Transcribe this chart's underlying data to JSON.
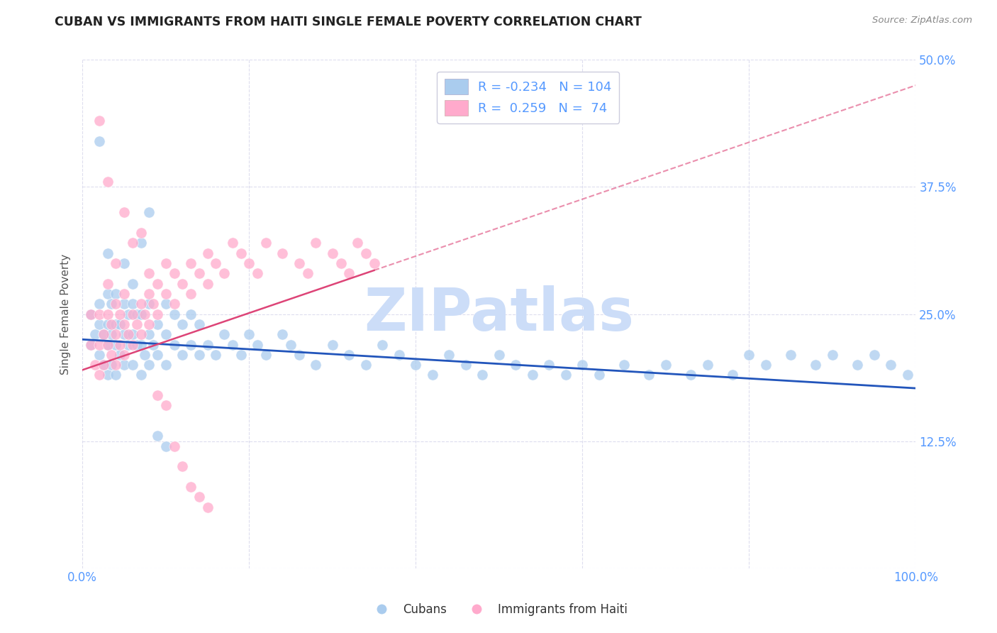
{
  "title": "CUBAN VS IMMIGRANTS FROM HAITI SINGLE FEMALE POVERTY CORRELATION CHART",
  "source": "Source: ZipAtlas.com",
  "ylabel": "Single Female Poverty",
  "xlim": [
    0,
    1.0
  ],
  "ylim": [
    0,
    0.5
  ],
  "yticks": [
    0.0,
    0.125,
    0.25,
    0.375,
    0.5
  ],
  "ytick_labels_right": [
    "",
    "12.5%",
    "25.0%",
    "37.5%",
    "50.0%"
  ],
  "xticks": [
    0.0,
    0.2,
    0.4,
    0.6,
    0.8,
    1.0
  ],
  "xtick_labels": [
    "0.0%",
    "",
    "",
    "",
    "",
    "100.0%"
  ],
  "blue_color": "#AACCEE",
  "pink_color": "#FFAACC",
  "blue_line_color": "#2255BB",
  "pink_line_color": "#DD4477",
  "axis_tick_color": "#5599FF",
  "grid_color": "#DDDDEE",
  "background_color": "#FFFFFF",
  "watermark_text": "ZIPatlas",
  "watermark_color": "#CCDDF8",
  "blue_slope": -0.048,
  "blue_intercept": 0.225,
  "pink_slope": 0.28,
  "pink_intercept": 0.195,
  "cubans_x": [
    0.01,
    0.01,
    0.015,
    0.02,
    0.02,
    0.02,
    0.025,
    0.025,
    0.03,
    0.03,
    0.03,
    0.03,
    0.035,
    0.035,
    0.035,
    0.04,
    0.04,
    0.04,
    0.04,
    0.045,
    0.045,
    0.05,
    0.05,
    0.05,
    0.055,
    0.055,
    0.06,
    0.06,
    0.06,
    0.065,
    0.065,
    0.07,
    0.07,
    0.07,
    0.075,
    0.08,
    0.08,
    0.08,
    0.085,
    0.09,
    0.09,
    0.1,
    0.1,
    0.1,
    0.11,
    0.11,
    0.12,
    0.12,
    0.13,
    0.13,
    0.14,
    0.14,
    0.15,
    0.16,
    0.17,
    0.18,
    0.19,
    0.2,
    0.21,
    0.22,
    0.24,
    0.25,
    0.26,
    0.28,
    0.3,
    0.32,
    0.34,
    0.36,
    0.38,
    0.4,
    0.42,
    0.44,
    0.46,
    0.48,
    0.5,
    0.52,
    0.54,
    0.56,
    0.58,
    0.6,
    0.62,
    0.65,
    0.68,
    0.7,
    0.73,
    0.75,
    0.78,
    0.8,
    0.82,
    0.85,
    0.88,
    0.9,
    0.93,
    0.95,
    0.97,
    0.99,
    0.02,
    0.03,
    0.05,
    0.06,
    0.07,
    0.08,
    0.09,
    0.1
  ],
  "cubans_y": [
    0.22,
    0.25,
    0.23,
    0.21,
    0.24,
    0.26,
    0.2,
    0.23,
    0.19,
    0.22,
    0.24,
    0.27,
    0.2,
    0.23,
    0.26,
    0.19,
    0.22,
    0.24,
    0.27,
    0.21,
    0.24,
    0.2,
    0.23,
    0.26,
    0.22,
    0.25,
    0.2,
    0.23,
    0.26,
    0.22,
    0.25,
    0.19,
    0.22,
    0.25,
    0.21,
    0.2,
    0.23,
    0.26,
    0.22,
    0.21,
    0.24,
    0.2,
    0.23,
    0.26,
    0.22,
    0.25,
    0.21,
    0.24,
    0.22,
    0.25,
    0.21,
    0.24,
    0.22,
    0.21,
    0.23,
    0.22,
    0.21,
    0.23,
    0.22,
    0.21,
    0.23,
    0.22,
    0.21,
    0.2,
    0.22,
    0.21,
    0.2,
    0.22,
    0.21,
    0.2,
    0.19,
    0.21,
    0.2,
    0.19,
    0.21,
    0.2,
    0.19,
    0.2,
    0.19,
    0.2,
    0.19,
    0.2,
    0.19,
    0.2,
    0.19,
    0.2,
    0.19,
    0.21,
    0.2,
    0.21,
    0.2,
    0.21,
    0.2,
    0.21,
    0.2,
    0.19,
    0.42,
    0.31,
    0.3,
    0.28,
    0.32,
    0.35,
    0.13,
    0.12
  ],
  "haiti_x": [
    0.01,
    0.01,
    0.015,
    0.02,
    0.02,
    0.02,
    0.025,
    0.025,
    0.03,
    0.03,
    0.03,
    0.035,
    0.035,
    0.04,
    0.04,
    0.04,
    0.045,
    0.045,
    0.05,
    0.05,
    0.05,
    0.055,
    0.06,
    0.06,
    0.065,
    0.07,
    0.07,
    0.075,
    0.08,
    0.08,
    0.085,
    0.09,
    0.09,
    0.1,
    0.1,
    0.11,
    0.11,
    0.12,
    0.13,
    0.13,
    0.14,
    0.15,
    0.15,
    0.16,
    0.17,
    0.18,
    0.19,
    0.2,
    0.21,
    0.22,
    0.24,
    0.26,
    0.27,
    0.28,
    0.3,
    0.31,
    0.32,
    0.33,
    0.34,
    0.35,
    0.02,
    0.03,
    0.04,
    0.05,
    0.06,
    0.07,
    0.08,
    0.09,
    0.1,
    0.11,
    0.12,
    0.13,
    0.14,
    0.15
  ],
  "haiti_y": [
    0.22,
    0.25,
    0.2,
    0.19,
    0.22,
    0.25,
    0.2,
    0.23,
    0.22,
    0.25,
    0.28,
    0.21,
    0.24,
    0.2,
    0.23,
    0.26,
    0.22,
    0.25,
    0.21,
    0.24,
    0.27,
    0.23,
    0.22,
    0.25,
    0.24,
    0.23,
    0.26,
    0.25,
    0.24,
    0.27,
    0.26,
    0.25,
    0.28,
    0.27,
    0.3,
    0.26,
    0.29,
    0.28,
    0.27,
    0.3,
    0.29,
    0.28,
    0.31,
    0.3,
    0.29,
    0.32,
    0.31,
    0.3,
    0.29,
    0.32,
    0.31,
    0.3,
    0.29,
    0.32,
    0.31,
    0.3,
    0.29,
    0.32,
    0.31,
    0.3,
    0.44,
    0.38,
    0.3,
    0.35,
    0.32,
    0.33,
    0.29,
    0.17,
    0.16,
    0.12,
    0.1,
    0.08,
    0.07,
    0.06
  ]
}
